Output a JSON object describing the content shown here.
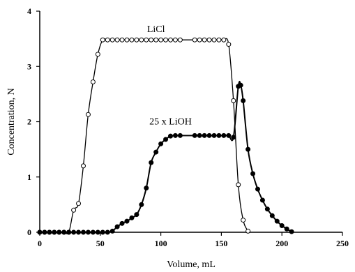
{
  "chart_data": {
    "type": "scatter",
    "title": "",
    "xlabel": "Volume, mL",
    "ylabel": "Concentration, N",
    "xlim": [
      0,
      250
    ],
    "ylim": [
      0,
      4
    ],
    "xticks": [
      "0",
      "50",
      "100",
      "150",
      "200",
      "250"
    ],
    "yticks": [
      "0",
      "1",
      "2",
      "3",
      "4"
    ],
    "grid": false,
    "legend": "none",
    "series": [
      {
        "name": "LiCl",
        "marker": "open-circle",
        "color": "#000000",
        "x": [
          0,
          4,
          8,
          12,
          16,
          20,
          24,
          28,
          32,
          36,
          40,
          44,
          48,
          52,
          56,
          60,
          64,
          68,
          72,
          76,
          80,
          84,
          88,
          92,
          96,
          100,
          104,
          108,
          112,
          116,
          128,
          132,
          136,
          140,
          144,
          148,
          152,
          156,
          160,
          164,
          168,
          172
        ],
        "y": [
          0,
          0,
          0,
          0,
          0,
          0,
          0,
          0.4,
          0.52,
          1.2,
          2.13,
          2.72,
          3.22,
          3.48,
          3.48,
          3.48,
          3.48,
          3.48,
          3.48,
          3.48,
          3.48,
          3.48,
          3.48,
          3.48,
          3.48,
          3.48,
          3.48,
          3.48,
          3.48,
          3.48,
          3.48,
          3.48,
          3.48,
          3.48,
          3.48,
          3.48,
          3.48,
          3.4,
          2.38,
          0.86,
          0.22,
          0.02
        ]
      },
      {
        "name": "25 x LiOH",
        "marker": "filled-circle",
        "color": "#000000",
        "x": [
          0,
          4,
          8,
          12,
          16,
          20,
          24,
          28,
          32,
          36,
          40,
          44,
          48,
          52,
          56,
          60,
          64,
          68,
          72,
          76,
          80,
          84,
          88,
          92,
          96,
          100,
          104,
          108,
          112,
          116,
          128,
          132,
          136,
          140,
          144,
          148,
          152,
          156,
          160,
          164,
          166,
          168,
          172,
          176,
          180,
          184,
          188,
          192,
          196,
          200,
          204,
          208
        ],
        "y": [
          0,
          0,
          0,
          0,
          0,
          0,
          0,
          0,
          0,
          0,
          0,
          0,
          0,
          0,
          0,
          0.02,
          0.1,
          0.16,
          0.2,
          0.26,
          0.32,
          0.5,
          0.8,
          1.26,
          1.45,
          1.6,
          1.68,
          1.74,
          1.75,
          1.75,
          1.75,
          1.75,
          1.75,
          1.75,
          1.75,
          1.75,
          1.75,
          1.75,
          1.72,
          2.64,
          2.66,
          2.38,
          1.5,
          1.06,
          0.78,
          0.58,
          0.42,
          0.3,
          0.2,
          0.12,
          0.06,
          0.01
        ]
      }
    ],
    "annotations": [
      {
        "text": "LiCl",
        "x": 96,
        "y": 3.62
      },
      {
        "text": "25 x LiOH",
        "x": 108,
        "y": 1.95
      }
    ]
  }
}
